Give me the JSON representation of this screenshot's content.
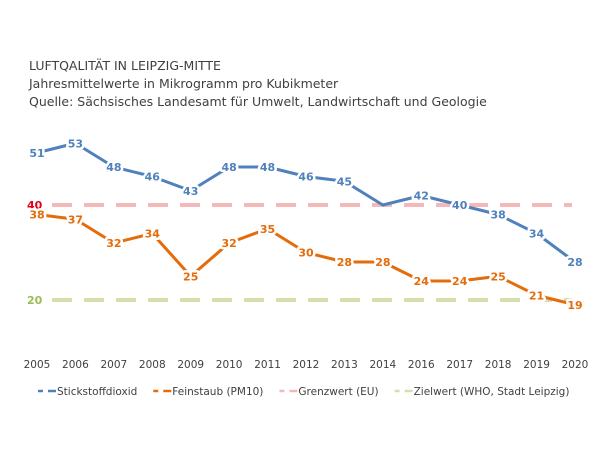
{
  "chart_data": {
    "type": "line",
    "title": "LUFTQALITÄT IN LEIPZIG-MITTE",
    "subtitle": "Jahresmittelwerte  in Mikrogramm pro Kubikmeter",
    "source": "Quelle: Sächsisches Landesamt für Umwelt, Landwirtschaft und Geologie",
    "categories": [
      "2005",
      "2006",
      "2007",
      "2008",
      "2009",
      "2010",
      "2011",
      "2012",
      "2013",
      "2014",
      "2016",
      "2017",
      "2018",
      "2019",
      "2020"
    ],
    "series": [
      {
        "name": "Stickstoffdioxid",
        "color": "#4F81BD",
        "values": [
          51,
          53,
          48,
          46,
          43,
          48,
          48,
          46,
          45,
          40,
          42,
          40,
          38,
          34,
          28
        ],
        "labels": [
          "51",
          "53",
          "48",
          "46",
          "43",
          "48",
          "48",
          "46",
          "45",
          "",
          "42",
          "40",
          "38",
          "34",
          "28"
        ]
      },
      {
        "name": "Feinstaub (PM10)",
        "color": "#E46C0A",
        "values": [
          38,
          37,
          32,
          34,
          25,
          32,
          35,
          30,
          28,
          28,
          24,
          24,
          25,
          21,
          19
        ],
        "labels": [
          "38",
          "37",
          "32",
          "34",
          "25",
          "32",
          "35",
          "30",
          "28",
          "28",
          "24",
          "24",
          "25",
          "21",
          "19"
        ]
      },
      {
        "name": "Grenzwert (EU)",
        "color": "#F4B8BA",
        "constant": 40,
        "label": "40",
        "label_color": "#E0001B",
        "dashed": true
      },
      {
        "name": "Zielwert (WHO, Stadt Leipzig)",
        "color": "#D5DEAD",
        "constant": 20,
        "label": "20",
        "label_color": "#9BBB59",
        "dashed": true
      }
    ],
    "xlabel": "",
    "ylabel": "",
    "grid": false,
    "legend": "bottom"
  }
}
